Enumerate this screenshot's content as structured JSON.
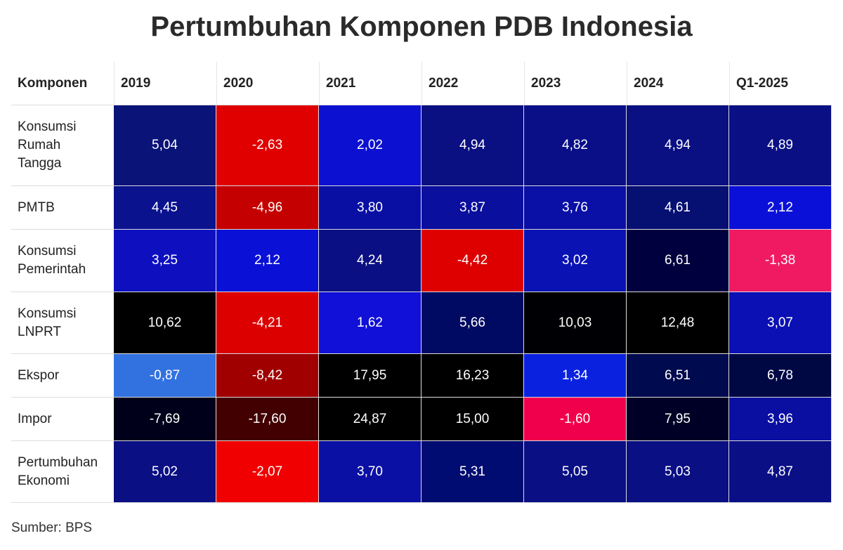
{
  "title": "Pertumbuhan Komponen PDB Indonesia",
  "table": {
    "header": [
      "Komponen",
      "2019",
      "2020",
      "2021",
      "2022",
      "2023",
      "2024",
      "Q1-2025"
    ],
    "rows": [
      {
        "label": "Konsumsi\nRumah\nTangga",
        "values": [
          "5,04",
          "-2,63",
          "2,02",
          "4,94",
          "4,82",
          "4,94",
          "4,89"
        ],
        "colors": [
          "#0a1378",
          "#e00000",
          "#0c10d0",
          "#0a0f82",
          "#0a0f88",
          "#0a0f82",
          "#0a1084"
        ]
      },
      {
        "label": "PMTB",
        "values": [
          "4,45",
          "-4,96",
          "3,80",
          "3,87",
          "3,76",
          "4,61",
          "2,12"
        ],
        "colors": [
          "#0a128e",
          "#c40000",
          "#0a0fa4",
          "#0a0f9e",
          "#0a0fa6",
          "#060f72",
          "#0a10d8"
        ]
      },
      {
        "label": "Konsumsi\nPemerintah",
        "values": [
          "3,25",
          "2,12",
          "4,24",
          "-4,42",
          "3,02",
          "6,61",
          "-1,38"
        ],
        "colors": [
          "#0e10c0",
          "#0a10d6",
          "#0a0f84",
          "#de0000",
          "#0a12b4",
          "#00003e",
          "#f01a62"
        ]
      },
      {
        "label": "Konsumsi\nLNPRT",
        "values": [
          "10,62",
          "-4,21",
          "1,62",
          "5,66",
          "10,03",
          "12,48",
          "3,07"
        ],
        "colors": [
          "#000000",
          "#dc0000",
          "#1010d8",
          "#000a62",
          "#000004",
          "#000000",
          "#0a10b4"
        ]
      },
      {
        "label": "Ekspor",
        "values": [
          "-0,87",
          "-8,42",
          "17,95",
          "16,23",
          "1,34",
          "6,51",
          "6,78"
        ],
        "colors": [
          "#3272e0",
          "#a00000",
          "#000000",
          "#000000",
          "#0a22e0",
          "#000a4e",
          "#000844"
        ]
      },
      {
        "label": "Impor",
        "values": [
          "-7,69",
          "-17,60",
          "24,87",
          "15,00",
          "-1,60",
          "7,95",
          "3,96"
        ],
        "colors": [
          "#00001a",
          "#420000",
          "#000000",
          "#000000",
          "#f0004c",
          "#000026",
          "#0a0fa2"
        ]
      },
      {
        "label": "Pertumbuhan\nEkonomi",
        "values": [
          "5,02",
          "-2,07",
          "3,70",
          "5,31",
          "5,05",
          "5,03",
          "4,87"
        ],
        "colors": [
          "#0a0f84",
          "#f00000",
          "#0a10a4",
          "#000c72",
          "#0a0f84",
          "#0a0f84",
          "#0a0f86"
        ]
      }
    ]
  },
  "source": "Sumber: BPS"
}
